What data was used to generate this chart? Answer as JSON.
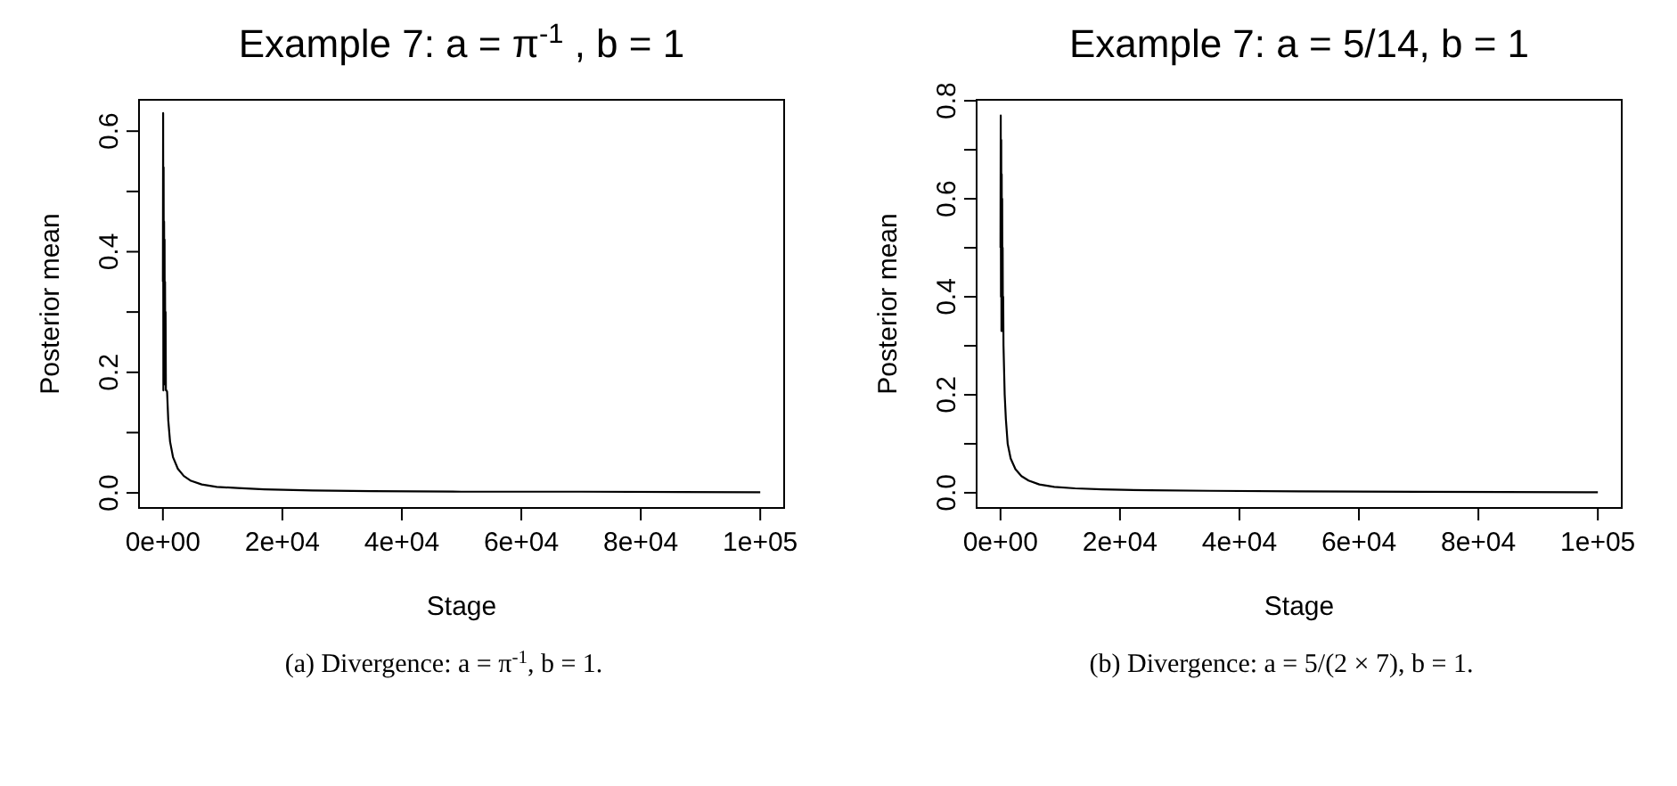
{
  "chart_data": [
    {
      "type": "line",
      "title": "Example 7: a =  π$^{-1}$ ,  b = 1",
      "xlabel": "Stage",
      "ylabel": "Posterior mean",
      "annotations": [
        "(a) Divergence: a = π$^{-1}$, b = 1."
      ],
      "x": [
        0,
        40,
        80,
        120,
        160,
        200,
        240,
        280,
        320,
        360,
        400,
        450,
        500,
        600,
        700,
        900,
        1200,
        1700,
        2500,
        3500,
        4700,
        6500,
        9000,
        12500,
        17000,
        25000,
        35000,
        50000,
        70000,
        100000
      ],
      "series": [
        {
          "color": "#000000",
          "values": [
            0.35,
            0.63,
            0.17,
            0.54,
            0.2,
            0.45,
            0.25,
            0.42,
            0.18,
            0.35,
            0.2,
            0.3,
            0.17,
            0.17,
            0.168,
            0.12,
            0.085,
            0.059,
            0.04,
            0.028,
            0.02,
            0.014,
            0.01,
            0.008,
            0.006,
            0.004,
            0.003,
            0.002,
            0.002,
            0.001
          ]
        }
      ],
      "xlim": [
        -4000,
        104000
      ],
      "ylim": [
        -0.025,
        0.652
      ],
      "xticks": [
        {
          "value": 0,
          "label": "0e+00"
        },
        {
          "value": 20000,
          "label": "2e+04"
        },
        {
          "value": 40000,
          "label": "4e+04"
        },
        {
          "value": 60000,
          "label": "6e+04"
        },
        {
          "value": 80000,
          "label": "8e+04"
        },
        {
          "value": 100000,
          "label": "1e+05"
        }
      ],
      "yticks": [
        {
          "value": 0,
          "label": "0.0"
        },
        {
          "value": 0.1,
          "label": null
        },
        {
          "value": 0.2,
          "label": "0.2"
        },
        {
          "value": 0.3,
          "label": null
        },
        {
          "value": 0.4,
          "label": "0.4"
        },
        {
          "value": 0.5,
          "label": null
        },
        {
          "value": 0.6,
          "label": "0.6"
        }
      ],
      "grid": false
    },
    {
      "type": "line",
      "title": "Example 7: a = 5/14, b = 1",
      "xlabel": "Stage",
      "ylabel": "Posterior mean",
      "annotations": [
        "(b) Divergence: a = 5/(2 × 7), b = 1."
      ],
      "x": [
        0,
        40,
        80,
        120,
        160,
        200,
        240,
        280,
        320,
        360,
        400,
        450,
        500,
        600,
        700,
        900,
        1200,
        1700,
        2500,
        3500,
        4700,
        6500,
        9000,
        12500,
        17000,
        25000,
        35000,
        50000,
        70000,
        100000
      ],
      "series": [
        {
          "color": "#000000",
          "values": [
            0.5,
            0.77,
            0.4,
            0.72,
            0.33,
            0.65,
            0.4,
            0.6,
            0.35,
            0.5,
            0.33,
            0.4,
            0.3,
            0.25,
            0.2,
            0.15,
            0.1,
            0.07,
            0.048,
            0.034,
            0.025,
            0.017,
            0.012,
            0.009,
            0.007,
            0.005,
            0.004,
            0.003,
            0.002,
            0.001
          ]
        }
      ],
      "xlim": [
        -4000,
        104000
      ],
      "ylim": [
        -0.031,
        0.802
      ],
      "xticks": [
        {
          "value": 0,
          "label": "0e+00"
        },
        {
          "value": 20000,
          "label": "2e+04"
        },
        {
          "value": 40000,
          "label": "4e+04"
        },
        {
          "value": 60000,
          "label": "6e+04"
        },
        {
          "value": 80000,
          "label": "8e+04"
        },
        {
          "value": 100000,
          "label": "1e+05"
        }
      ],
      "yticks": [
        {
          "value": 0,
          "label": "0.0"
        },
        {
          "value": 0.1,
          "label": null
        },
        {
          "value": 0.2,
          "label": "0.2"
        },
        {
          "value": 0.3,
          "label": null
        },
        {
          "value": 0.4,
          "label": "0.4"
        },
        {
          "value": 0.5,
          "label": null
        },
        {
          "value": 0.6,
          "label": "0.6"
        },
        {
          "value": 0.7,
          "label": null
        },
        {
          "value": 0.8,
          "label": "0.8"
        }
      ],
      "grid": false
    }
  ]
}
